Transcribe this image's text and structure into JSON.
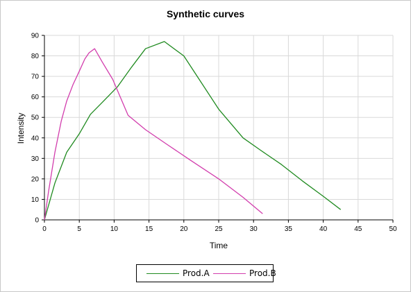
{
  "chart_data": {
    "type": "line",
    "title": "Synthetic curves",
    "xlabel": "Time",
    "ylabel": "Intensity",
    "xlim": [
      0,
      50
    ],
    "ylim": [
      0,
      90
    ],
    "xticks": [
      0,
      5,
      10,
      15,
      20,
      25,
      30,
      35,
      40,
      45,
      50
    ],
    "yticks": [
      0,
      10,
      20,
      30,
      40,
      50,
      60,
      70,
      80,
      90
    ],
    "grid": true,
    "legend_position": "bottom",
    "series": [
      {
        "name": "Prod.A",
        "color": "#1f8a1f",
        "x": [
          0,
          1.5,
          3.2,
          5,
          6.6,
          8.5,
          10.5,
          12.5,
          14.5,
          17.2,
          20,
          22.5,
          25,
          28.5,
          31,
          34,
          37,
          40,
          42.5
        ],
        "y": [
          0,
          18,
          33,
          42,
          51.5,
          58,
          65,
          74.5,
          83.5,
          87,
          80,
          67,
          54,
          40,
          34,
          27,
          19,
          11.5,
          5
        ]
      },
      {
        "name": "Prod.B",
        "color": "#d23dad",
        "x": [
          0,
          0.6,
          1.5,
          2.4,
          3.2,
          4.1,
          5,
          5.8,
          6.4,
          7.2,
          8.3,
          9.8,
          12,
          14.5,
          17.5,
          21,
          25,
          28.5,
          31.3
        ],
        "y": [
          0,
          14,
          33,
          48,
          58,
          66,
          72.5,
          78.5,
          81.5,
          83.5,
          77,
          68.5,
          51,
          44,
          37,
          29,
          20,
          11,
          3
        ]
      }
    ]
  }
}
